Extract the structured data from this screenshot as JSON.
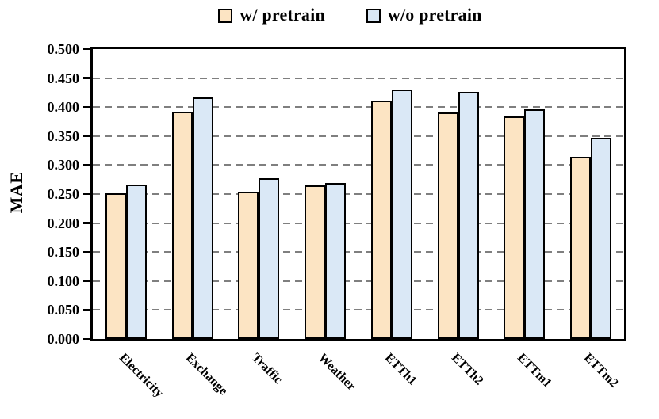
{
  "chart_data": {
    "type": "bar",
    "categories": [
      "Electricity",
      "Exchange",
      "Traffic",
      "Weather",
      "ETTh1",
      "ETTh2",
      "ETTm1",
      "ETTm2"
    ],
    "series": [
      {
        "name": "w/ pretrain",
        "color": "#FCE4C3",
        "values": [
          0.251,
          0.392,
          0.254,
          0.265,
          0.411,
          0.391,
          0.384,
          0.314
        ]
      },
      {
        "name": "w/o pretrain",
        "color": "#DAE8F6",
        "values": [
          0.266,
          0.416,
          0.277,
          0.269,
          0.43,
          0.426,
          0.396,
          0.347
        ]
      }
    ],
    "title": "",
    "xlabel": "",
    "ylabel": "MAE",
    "ylim": [
      0.0,
      0.5
    ],
    "ytick_step": 0.05,
    "ytick_decimals": 3,
    "grid": "horizontal-dashed",
    "legend_position": "top-center",
    "colors": {
      "bar_border": "#000000",
      "gridline": "#7F7F7F",
      "axis": "#000000",
      "text": "#000000",
      "background": "#FFFFFF"
    }
  }
}
